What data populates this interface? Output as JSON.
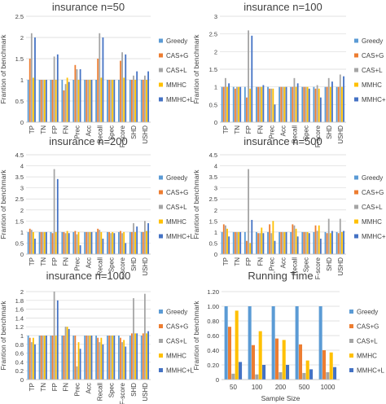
{
  "colors": {
    "Greedy": "#5b9bd5",
    "CAS+G": "#ed7d31",
    "CAS+L": "#a5a5a5",
    "MMHC": "#ffc000",
    "MMHC+L": "#4472c4"
  },
  "chart_data": [
    {
      "type": "bar",
      "title": "insurance n=50",
      "ylabel": "Frantion of benchmark",
      "ylim": [
        0,
        2.5
      ],
      "yticks": [
        0,
        0.5,
        1,
        1.5,
        2,
        2.5
      ],
      "ytick_labels": [
        "0",
        "0.5",
        "1",
        "1.5",
        "2",
        "2.5"
      ],
      "categories": [
        "TP",
        "TN",
        "FP",
        "FN",
        "Prec",
        "Acc",
        "Recall",
        "Spec",
        "F-score",
        "SHD",
        "USHD"
      ],
      "series": [
        {
          "name": "Greedy",
          "values": [
            1,
            1,
            1,
            1,
            1,
            1,
            1,
            1,
            1,
            1,
            1
          ]
        },
        {
          "name": "CAS+G",
          "values": [
            1.5,
            1,
            1,
            0.75,
            1.35,
            1,
            1.5,
            1,
            1.45,
            1,
            1
          ]
        },
        {
          "name": "CAS+L",
          "values": [
            2.1,
            1,
            1.55,
            0.9,
            1.25,
            1,
            2.1,
            1,
            1.65,
            1.1,
            1.1
          ]
        },
        {
          "name": "MMHC",
          "values": [
            1.05,
            1,
            1,
            1.05,
            1,
            1,
            1.05,
            1,
            1.05,
            1,
            1
          ]
        },
        {
          "name": "MMHC+L",
          "values": [
            2,
            1,
            1.6,
            0.95,
            1.25,
            1,
            2,
            1,
            1.6,
            1.2,
            1.2
          ]
        }
      ],
      "legend": [
        "Greedy",
        "CAS+G",
        "CAS+L",
        "MMHC",
        "MMHC+L"
      ],
      "legend_position": "right"
    },
    {
      "type": "bar",
      "title": "insurance n=100",
      "ylabel": "Frantion of benchmark",
      "ylim": [
        0,
        3
      ],
      "yticks": [
        0,
        0.5,
        1,
        1.5,
        2,
        2.5,
        3
      ],
      "ytick_labels": [
        "0",
        "0.5",
        "1",
        "1.5",
        "2",
        "2.5",
        "3"
      ],
      "categories": [
        "TP",
        "TN",
        "FP",
        "FN",
        "Prec",
        "Acc",
        "Recall",
        "Spec",
        "F-score",
        "SHD",
        "USHD"
      ],
      "series": [
        {
          "name": "Greedy",
          "values": [
            1,
            1,
            1,
            1,
            1,
            1,
            1,
            1,
            1,
            1,
            1
          ]
        },
        {
          "name": "CAS+G",
          "values": [
            1,
            0.95,
            0.7,
            1,
            0.95,
            1,
            1,
            1,
            0.95,
            1,
            1
          ]
        },
        {
          "name": "CAS+L",
          "values": [
            1.25,
            1,
            2.6,
            1,
            0.95,
            1,
            1.25,
            1,
            1.05,
            1.25,
            1.35
          ]
        },
        {
          "name": "MMHC",
          "values": [
            1,
            1,
            0.95,
            1,
            0.95,
            1,
            1,
            1,
            0.95,
            1,
            1
          ]
        },
        {
          "name": "MMHC+L",
          "values": [
            1.1,
            1,
            2.45,
            1.05,
            0.5,
            1,
            1.1,
            0.95,
            0.7,
            1.15,
            1.3
          ]
        }
      ],
      "legend": [
        "Greedy",
        "CAS+G",
        "CAS+L",
        "MMHC",
        "MMHC+L"
      ],
      "legend_position": "right"
    },
    {
      "type": "bar",
      "title": "insurance n=200",
      "ylabel": "Frantion of benchmark",
      "ylim": [
        0,
        4.5
      ],
      "yticks": [
        0,
        0.5,
        1,
        1.5,
        2,
        2.5,
        3,
        3.5,
        4,
        4.5
      ],
      "ytick_labels": [
        "0",
        "0.5",
        "1",
        "1.5",
        "2",
        "2.5",
        "3",
        "3.5",
        "4",
        "4.5"
      ],
      "categories": [
        "TP",
        "TN",
        "FP",
        "FN",
        "Prec",
        "Acc",
        "Recall",
        "Spec",
        "F-score",
        "SHD",
        "USHD"
      ],
      "series": [
        {
          "name": "Greedy",
          "values": [
            1,
            1,
            1,
            1,
            1,
            1,
            1,
            1,
            1,
            1,
            1
          ]
        },
        {
          "name": "CAS+G",
          "values": [
            1.15,
            1,
            0.95,
            1,
            1.05,
            1,
            1.15,
            1,
            1.05,
            1,
            1
          ]
        },
        {
          "name": "CAS+L",
          "values": [
            1.1,
            1,
            3.85,
            0.95,
            0.9,
            1,
            1.1,
            0.95,
            0.95,
            1.4,
            1.5
          ]
        },
        {
          "name": "MMHC",
          "values": [
            1,
            1,
            1,
            1.05,
            1,
            1,
            1,
            1,
            1,
            1,
            1.05
          ]
        },
        {
          "name": "MMHC+L",
          "values": [
            0.7,
            1,
            3.4,
            0.95,
            0.4,
            1,
            0.7,
            0.95,
            0.5,
            1.25,
            1.4
          ]
        }
      ],
      "legend": [
        "Greedy",
        "CAS+G",
        "CAS+L",
        "MMHC",
        "MMHC+L"
      ],
      "legend_position": "right"
    },
    {
      "type": "bar",
      "title": "insurance n=500",
      "ylabel": "Frantion of benchmark",
      "ylim": [
        0,
        4.5
      ],
      "yticks": [
        0,
        0.5,
        1,
        1.5,
        2,
        2.5,
        3,
        3.5,
        4,
        4.5
      ],
      "ytick_labels": [
        "0",
        "0.5",
        "1",
        "1.5",
        "2",
        "2.5",
        "3",
        "3.5",
        "4",
        "4.5"
      ],
      "categories": [
        "TP",
        "TN",
        "FP",
        "FN",
        "Prec",
        "Acc",
        "Recall",
        "Spec",
        "F-score",
        "SHD",
        "USHD"
      ],
      "series": [
        {
          "name": "Greedy",
          "values": [
            1,
            1,
            1,
            1,
            1,
            1,
            1,
            1,
            1,
            1,
            1
          ]
        },
        {
          "name": "CAS+G",
          "values": [
            1.35,
            1,
            0.6,
            0.95,
            1.35,
            1,
            1.35,
            1,
            1.3,
            0.95,
            0.95
          ]
        },
        {
          "name": "CAS+L",
          "values": [
            1.3,
            1,
            3.85,
            0.95,
            0.95,
            1,
            1.3,
            1,
            1.05,
            1.6,
            1.6
          ]
        },
        {
          "name": "MMHC",
          "values": [
            1.15,
            1,
            0.5,
            1.2,
            1.5,
            1,
            1.15,
            1,
            1.3,
            0.95,
            1
          ]
        },
        {
          "name": "MMHC+L",
          "values": [
            0.8,
            1,
            1.55,
            0.95,
            0.6,
            1,
            0.8,
            0.95,
            0.7,
            1.05,
            1.05
          ]
        }
      ],
      "legend": [
        "Greedy",
        "CAS+G",
        "CAS+L",
        "MMHC",
        "MMHC+L"
      ],
      "legend_position": "right"
    },
    {
      "type": "bar",
      "title": "insurance n=1000",
      "ylabel": "Frantion of benchmark",
      "ylim": [
        0,
        2
      ],
      "yticks": [
        0,
        0.2,
        0.4,
        0.6,
        0.8,
        1,
        1.2,
        1.4,
        1.6,
        1.8,
        2
      ],
      "ytick_labels": [
        "0",
        "0.2",
        "0.4",
        "0.6",
        "0.8",
        "1",
        "1.2",
        "1.4",
        "1.6",
        "1.8",
        "2"
      ],
      "categories": [
        "TP",
        "TN",
        "FP",
        "FN",
        "Prec",
        "Acc",
        "Recall",
        "Spec",
        "F-score",
        "SHD",
        "USHD"
      ],
      "series": [
        {
          "name": "Greedy",
          "values": [
            1,
            1,
            1,
            1,
            1,
            1,
            1,
            1,
            1,
            1,
            1
          ]
        },
        {
          "name": "CAS+G",
          "values": [
            0.95,
            1,
            1,
            1,
            1,
            1,
            0.95,
            1,
            0.95,
            1.05,
            1.05
          ]
        },
        {
          "name": "CAS+L",
          "values": [
            0.85,
            1,
            2,
            1.2,
            0.3,
            1,
            0.85,
            1,
            0.85,
            1.85,
            1.95
          ]
        },
        {
          "name": "MMHC",
          "values": [
            0.95,
            1,
            1,
            1.2,
            0.85,
            1,
            0.95,
            1,
            0.9,
            1.05,
            1.05
          ]
        },
        {
          "name": "MMHC+L",
          "values": [
            0.8,
            1,
            1.8,
            1.15,
            0.7,
            1,
            0.8,
            1,
            0.75,
            1.05,
            1.1
          ]
        }
      ],
      "legend": [
        "Greedy",
        "CAS+G",
        "CAS+L",
        "MMHC",
        "MMHC+L"
      ],
      "legend_position": "right"
    },
    {
      "type": "bar",
      "title": "Running Time",
      "ylabel": "Frantion of benchmark",
      "xlabel": "Sample Size",
      "ylim": [
        0,
        1.2
      ],
      "yticks": [
        0,
        0.2,
        0.4,
        0.6,
        0.8,
        1,
        1.2
      ],
      "ytick_labels": [
        "0",
        "0.20",
        "0.40",
        "0.60",
        "0.80",
        "1.00",
        "1.20"
      ],
      "categories": [
        "50",
        "100",
        "200",
        "500",
        "1000"
      ],
      "series": [
        {
          "name": "Greedy",
          "values": [
            1,
            1,
            1,
            1,
            1
          ]
        },
        {
          "name": "CAS+G",
          "values": [
            0.72,
            0.47,
            0.56,
            0.48,
            0.4
          ]
        },
        {
          "name": "CAS+L",
          "values": [
            0.08,
            0.07,
            0.1,
            0.09,
            0.1
          ]
        },
        {
          "name": "MMHC",
          "values": [
            0.94,
            0.66,
            0.54,
            0.26,
            0.37
          ]
        },
        {
          "name": "MMHC+L",
          "values": [
            0.24,
            0.2,
            0.2,
            0.14,
            0.17
          ]
        }
      ],
      "legend": [
        "Greedy",
        "CAS+G",
        "CAS+L",
        "MMHC",
        "MMHC+L"
      ],
      "legend_position": "right"
    }
  ]
}
